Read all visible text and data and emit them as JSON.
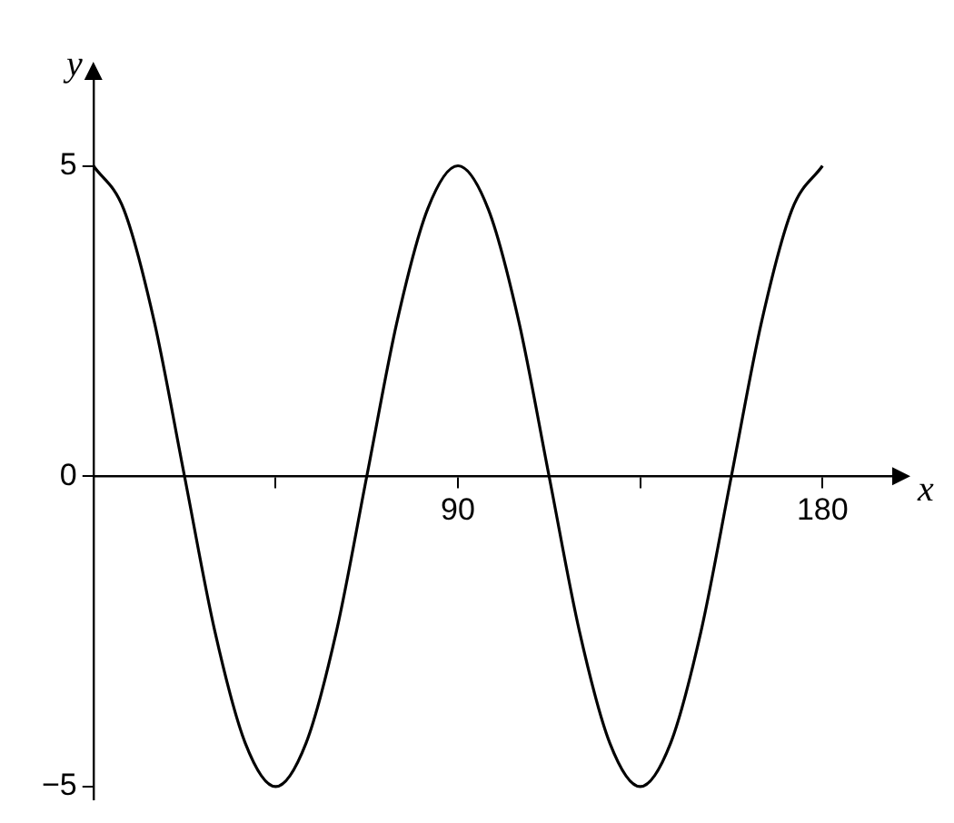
{
  "chart_data": {
    "type": "line",
    "xlabel": "x",
    "ylabel": "y",
    "x": [
      0,
      7.5,
      15,
      22.5,
      30,
      37.5,
      45,
      52.5,
      60,
      67.5,
      75,
      82.5,
      90,
      97.5,
      105,
      112.5,
      120,
      127.5,
      135,
      142.5,
      150,
      157.5,
      165,
      172.5,
      180
    ],
    "series": [
      {
        "color": "#000000",
        "values": [
          5,
          4.3,
          2.5,
          0,
          -2.5,
          -4.3,
          -5,
          -4.3,
          -2.5,
          0,
          2.5,
          4.3,
          5,
          4.3,
          2.5,
          0,
          -2.5,
          -4.3,
          -5,
          -4.3,
          -2.5,
          0,
          2.5,
          4.3,
          5
        ]
      }
    ],
    "xlim": [
      0,
      199
    ],
    "ylim": [
      -5.2,
      6.5
    ],
    "xticks": [
      {
        "value": 45,
        "label": null
      },
      90,
      {
        "value": 135,
        "label": null
      },
      180
    ],
    "yticks": [
      {
        "value": -5,
        "label": "−5"
      },
      {
        "value": 0,
        "label": "0"
      },
      5
    ],
    "grid": false,
    "legend": false,
    "marker": "none",
    "line_style": "solid"
  }
}
